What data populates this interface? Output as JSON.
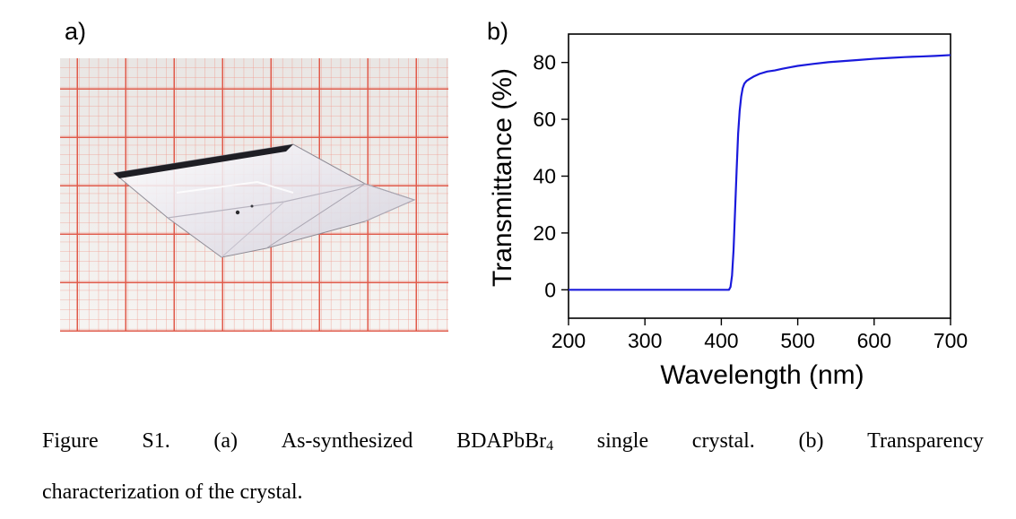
{
  "panels": {
    "a_label": "a)",
    "b_label": "b)"
  },
  "chart_data": {
    "type": "line",
    "xlabel": "Wavelength (nm)",
    "ylabel": "Transmittance (%)",
    "xlim": [
      200,
      700
    ],
    "ylim": [
      -10,
      90
    ],
    "xticks": [
      200,
      300,
      400,
      500,
      600,
      700
    ],
    "yticks": [
      0,
      20,
      40,
      60,
      80
    ],
    "grid": false,
    "series_color": "#1a1adc",
    "x": [
      200,
      300,
      400,
      410,
      412,
      414,
      416,
      418,
      420,
      422,
      424,
      426,
      428,
      430,
      433,
      437,
      442,
      450,
      460,
      470,
      480,
      490,
      500,
      520,
      540,
      560,
      580,
      600,
      620,
      640,
      660,
      680,
      700
    ],
    "y": [
      0,
      0,
      0,
      0,
      1,
      5,
      14,
      28,
      42,
      55,
      63,
      68,
      71,
      72.5,
      73.5,
      74.2,
      75,
      76,
      76.8,
      77.2,
      77.8,
      78.3,
      78.8,
      79.5,
      80.1,
      80.5,
      80.9,
      81.3,
      81.6,
      81.9,
      82.1,
      82.3,
      82.6
    ]
  },
  "caption": {
    "line1_words": [
      "Figure",
      "S1.",
      "(a)",
      "As-synthesized"
    ],
    "compound_main": "BDAPbBr",
    "compound_sub": "4",
    "line1_rest": [
      "single",
      "crystal.",
      "(b)",
      "Transparency"
    ],
    "line2": "characterization of the crystal."
  },
  "colors": {
    "grid_major": "#e05a4a",
    "grid_minor": "#ef9a8e",
    "paper": "#f3f0ee"
  }
}
